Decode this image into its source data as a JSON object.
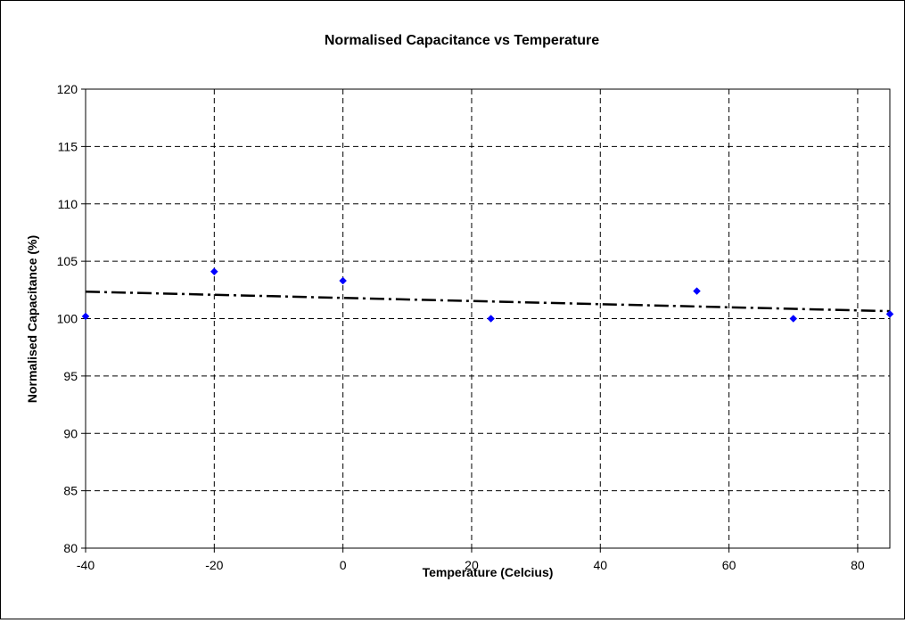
{
  "chart_data": {
    "type": "scatter",
    "title": "Normalised Capacitance vs Temperature",
    "xlabel": "Temperature (Celcius)",
    "ylabel": "Normalised Capacitance (%)",
    "xlim": [
      -40,
      85
    ],
    "ylim": [
      80,
      120
    ],
    "x_ticks": [
      -40,
      -20,
      0,
      20,
      40,
      60,
      80
    ],
    "y_ticks": [
      80,
      85,
      90,
      95,
      100,
      105,
      110,
      115,
      120
    ],
    "grid": true,
    "legend": "none",
    "series": [
      {
        "marker_color": "#0000FF",
        "marker": "diamond",
        "points": [
          {
            "x": -40,
            "y": 100.2
          },
          {
            "x": -20,
            "y": 104.1
          },
          {
            "x": 0,
            "y": 103.3
          },
          {
            "x": 23,
            "y": 100.0
          },
          {
            "x": 55,
            "y": 102.4
          },
          {
            "x": 70,
            "y": 100.0
          },
          {
            "x": 85,
            "y": 100.4
          }
        ]
      }
    ],
    "trendline": {
      "type": "linear",
      "style": "dash-dot",
      "color": "#000000",
      "points": [
        {
          "x": -40,
          "y": 102.35
        },
        {
          "x": 85,
          "y": 100.65
        }
      ]
    }
  }
}
